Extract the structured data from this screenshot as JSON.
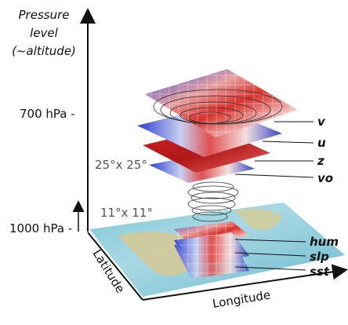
{
  "axis": {
    "vertical": [
      "Pressure",
      "level",
      "(~altitude)"
    ],
    "latitude": "Latitude",
    "longitude": "Longitude"
  },
  "levels": [
    "700 hPa -",
    "1000 hPa -"
  ],
  "domains": [
    "25°x 25°",
    "11°x 11°"
  ],
  "upper_variables": [
    "v",
    "u",
    "z",
    "vo"
  ],
  "lower_variables": [
    "hum",
    "slp",
    "sst"
  ]
}
